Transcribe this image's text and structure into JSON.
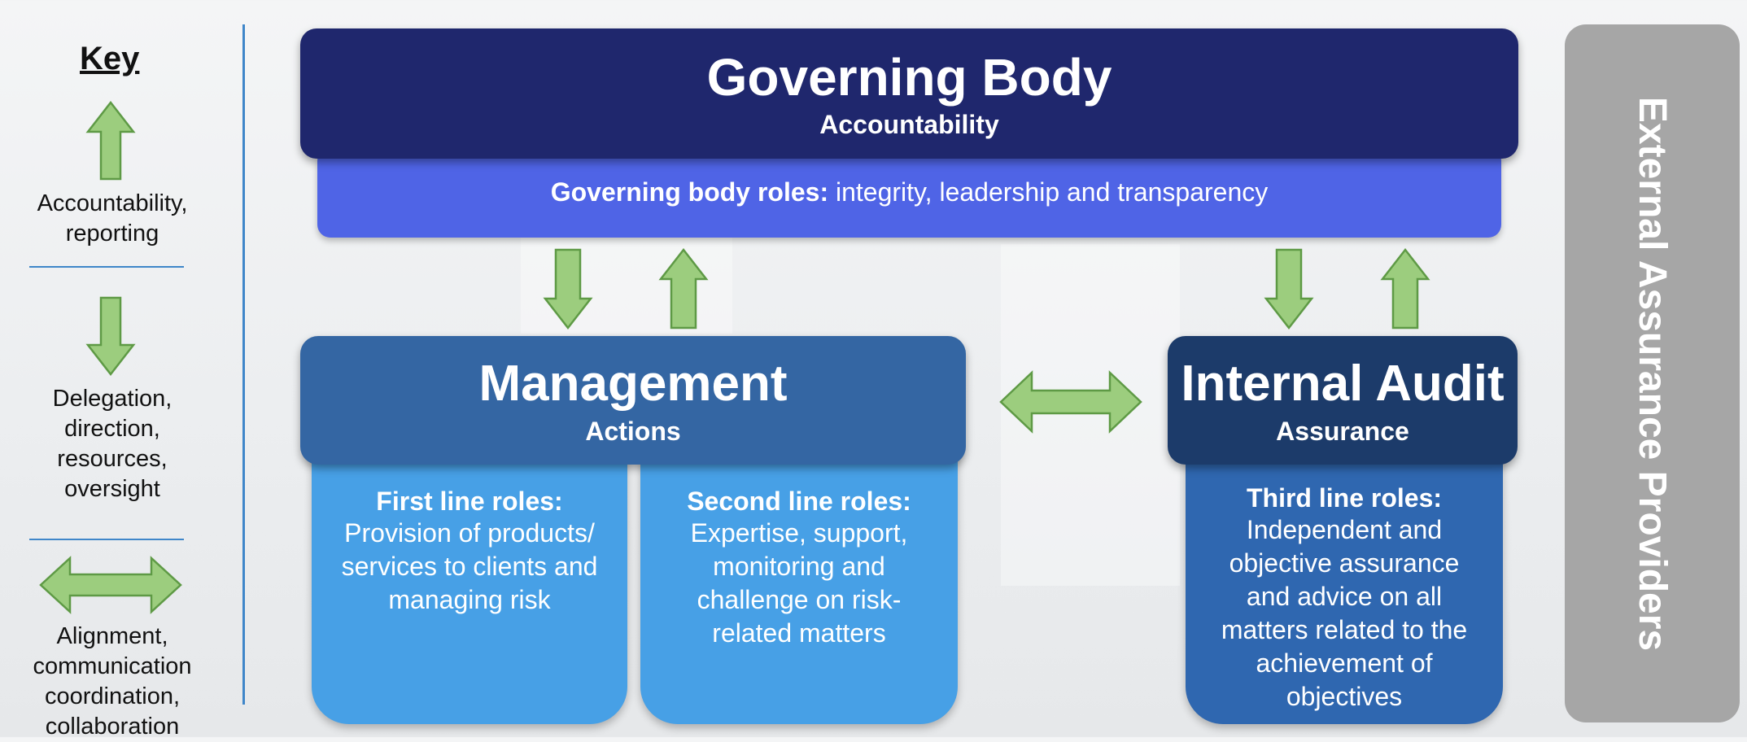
{
  "key": {
    "title": "Key",
    "items": [
      {
        "icon": "arrow-up-icon",
        "lines": [
          "Accountability,",
          "reporting"
        ]
      },
      {
        "icon": "arrow-down-icon",
        "lines": [
          "Delegation,",
          "direction,",
          "resources,",
          "oversight"
        ]
      },
      {
        "icon": "arrow-left-right-icon",
        "lines": [
          "Alignment,",
          "communication",
          "coordination,",
          "collaboration"
        ]
      }
    ]
  },
  "governing_body": {
    "title": "Governing Body",
    "subtitle": "Accountability",
    "roles_label": "Governing body roles:",
    "roles_text": " integrity, leadership and transparency"
  },
  "management": {
    "title": "Management",
    "subtitle": "Actions",
    "first_line": {
      "heading": "First line roles:",
      "lines": [
        "Provision of products/",
        "services to clients and",
        "managing risk"
      ]
    },
    "second_line": {
      "heading": "Second line roles:",
      "lines": [
        "Expertise, support,",
        "monitoring and",
        "challenge on risk-",
        "related matters"
      ]
    }
  },
  "internal_audit": {
    "title": "Internal Audit",
    "subtitle": "Assurance",
    "third_line": {
      "heading": "Third line roles:",
      "lines": [
        "Independent and",
        "objective assurance",
        "and advice on all",
        "matters related to the",
        "achievement of",
        "objectives"
      ]
    }
  },
  "external": {
    "label": "External Assurance Providers"
  },
  "colors": {
    "governing_body": "#1f276d",
    "governing_roles": "#4f64e6",
    "management": "#3466a3",
    "line_roles": "#47a0e6",
    "internal_audit": "#1c3b6a",
    "third_line": "#2f67b0",
    "external": "#a6a6a6",
    "arrow_fill": "#9ccd7e",
    "arrow_stroke": "#5e9a45",
    "divider": "#3f86c9"
  }
}
